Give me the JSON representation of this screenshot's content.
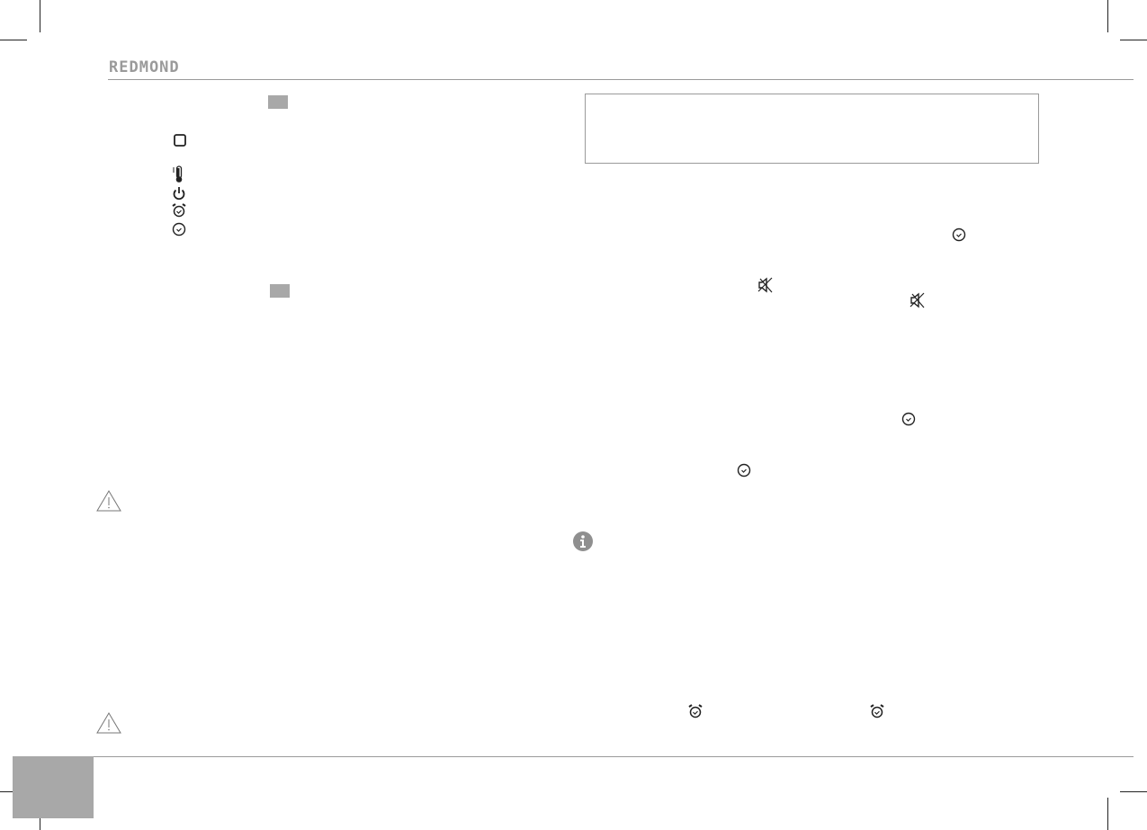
{
  "header": {
    "logo": "REDMOND"
  },
  "colors": {
    "accent_gray": "#a8a8a8",
    "rule": "#9a9a9a",
    "icon": "#222222"
  },
  "icons": {
    "left_legend": [
      "stop-square-icon",
      "thermometer-icon",
      "power-icon",
      "alarm-clock-icon",
      "clock-icon"
    ],
    "warnings": [
      "warning-triangle-icon",
      "warning-triangle-icon"
    ],
    "right": [
      "clock-icon",
      "mute-icon",
      "mute-icon",
      "clock-icon",
      "clock-icon",
      "info-icon",
      "alarm-clock-icon",
      "alarm-clock-icon"
    ]
  }
}
